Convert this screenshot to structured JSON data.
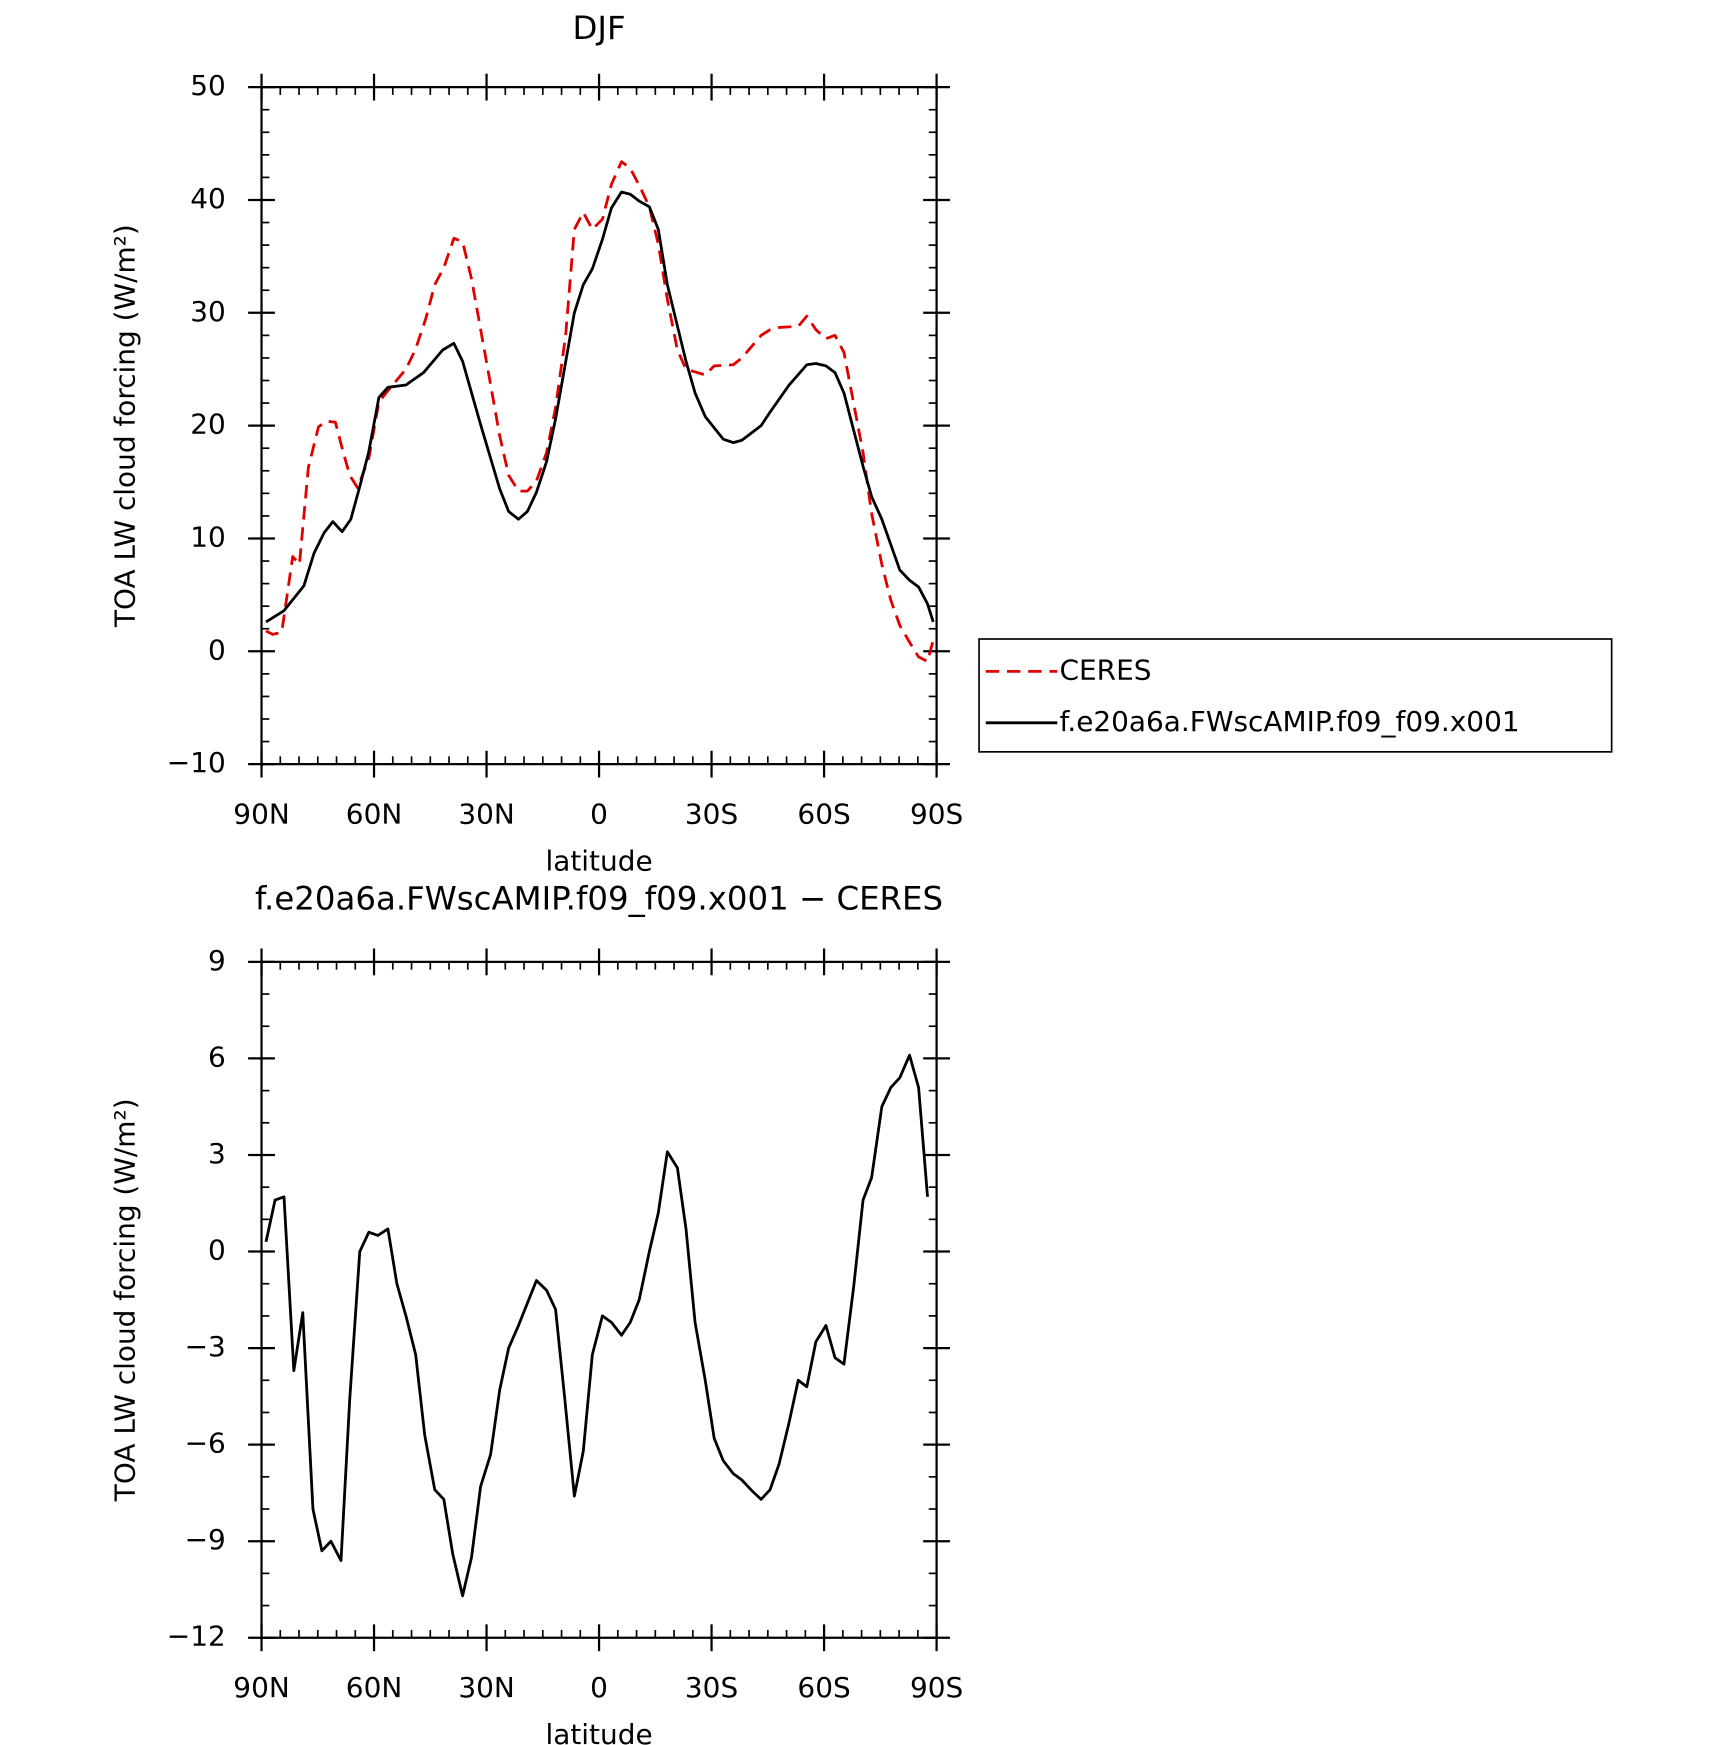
{
  "chart_data": [
    {
      "type": "line",
      "title": "DJF",
      "xlabel": "latitude",
      "ylabel": "TOA LW cloud forcing (W/m²)",
      "xlim": [
        90,
        -90
      ],
      "xticks": [
        {
          "value": 90,
          "label": "90N"
        },
        {
          "value": 60,
          "label": "60N"
        },
        {
          "value": 30,
          "label": "30N"
        },
        0,
        {
          "value": -30,
          "label": "30S"
        },
        {
          "value": -60,
          "label": "60S"
        },
        {
          "value": -90,
          "label": "90S"
        }
      ],
      "ylim": [
        -10,
        50
      ],
      "yticks": [
        {
          "value": -10,
          "label": "−10"
        },
        0,
        10,
        20,
        30,
        40,
        50
      ],
      "legend": "right",
      "series": [
        {
          "name": "CERES",
          "color": "#e00000",
          "dashed": true,
          "x": [
            88.8,
            87,
            84.6,
            81.7,
            79.9,
            77.5,
            74.8,
            72.7,
            70.3,
            68.2,
            66.5,
            64.4,
            61.4,
            58.7,
            56.3,
            51.5,
            48.9,
            46.2,
            43.8,
            41.4,
            38.7,
            36.4,
            34,
            31.3,
            28.9,
            26.5,
            24.1,
            21.5,
            19.1,
            16.7,
            14,
            11.6,
            8.9,
            6.6,
            4.2,
            1.8,
            -0.9,
            -3.3,
            -6,
            -8.3,
            -10.7,
            -13.4,
            -15.8,
            -18.2,
            -20.9,
            -23.2,
            -28.3,
            -30.7,
            -35.8,
            -38.1,
            -43.2,
            -45.6,
            -48,
            -53.1,
            -55.4,
            -57.8,
            -60.5,
            -62.9,
            -65.3,
            -70.4,
            -72.7,
            -75.4,
            -77.8,
            -80.2,
            -82.8,
            -85.2,
            -87.6,
            -89.1
          ],
          "values": [
            1.8,
            1.5,
            1.7,
            8.4,
            7.7,
            16.3,
            19.9,
            20.4,
            20.3,
            17.6,
            15.6,
            14.5,
            17.1,
            22.1,
            23.1,
            25,
            26.8,
            29.5,
            32.5,
            34,
            36.6,
            36.3,
            33,
            28,
            23.6,
            19.1,
            15.6,
            14.2,
            14.2,
            15.1,
            17.6,
            21.6,
            28,
            37.4,
            38.9,
            37.4,
            38.3,
            41.4,
            43.4,
            42.8,
            41.3,
            39.4,
            36.1,
            31.2,
            26.7,
            25,
            24.5,
            25.3,
            25.4,
            26,
            28,
            28.5,
            28.7,
            28.8,
            29.7,
            28.5,
            27.7,
            28,
            26.5,
            17.6,
            12.2,
            7.7,
            4.5,
            2.3,
            0.8,
            -0.5,
            -0.9,
            1
          ]
        },
        {
          "name": "f.e20a6a.FWscAMIP.f09_f09.x001",
          "color": "#000000",
          "dashed": false,
          "x": [
            88.8,
            84,
            78.7,
            76,
            73.3,
            71,
            68.5,
            66.2,
            63.8,
            61.4,
            58.7,
            56.3,
            51.5,
            46.8,
            41.7,
            38.7,
            36.4,
            31.6,
            26.5,
            24.1,
            21.5,
            19.1,
            16.7,
            14,
            11.6,
            6.6,
            4.2,
            1.8,
            -0.9,
            -3.3,
            -6,
            -8.3,
            -10.7,
            -13.4,
            -15.8,
            -18.2,
            -23.2,
            -25.6,
            -28.3,
            -33.1,
            -35.8,
            -38.1,
            -43.2,
            -45.6,
            -50.7,
            -55.4,
            -57.8,
            -60.5,
            -62.9,
            -65.3,
            -70.4,
            -72.7,
            -75.4,
            -80.2,
            -82.8,
            -85.2,
            -87.6,
            -89.1
          ],
          "values": [
            2.6,
            3.6,
            5.8,
            8.7,
            10.5,
            11.5,
            10.6,
            11.7,
            14.6,
            17.7,
            22.5,
            23.4,
            23.6,
            24.7,
            26.7,
            27.3,
            25.7,
            20.1,
            14.4,
            12.4,
            11.7,
            12.4,
            14.1,
            16.8,
            20.6,
            30,
            32.5,
            33.9,
            36.5,
            39.3,
            40.7,
            40.5,
            39.9,
            39.4,
            37.4,
            32.5,
            25.7,
            22.9,
            20.8,
            18.8,
            18.5,
            18.7,
            20,
            21.2,
            23.6,
            25.4,
            25.5,
            25.3,
            24.7,
            22.9,
            16.4,
            13.7,
            11.7,
            7.2,
            6.3,
            5.7,
            4.2,
            2.6
          ]
        }
      ]
    },
    {
      "type": "line",
      "title": "f.e20a6a.FWscAMIP.f09_f09.x001 − CERES",
      "xlabel": "latitude",
      "ylabel": "TOA LW cloud forcing (W/m²)",
      "xlim": [
        90,
        -90
      ],
      "xticks": [
        {
          "value": 90,
          "label": "90N"
        },
        {
          "value": 60,
          "label": "60N"
        },
        {
          "value": 30,
          "label": "30N"
        },
        0,
        {
          "value": -30,
          "label": "30S"
        },
        {
          "value": -60,
          "label": "60S"
        },
        {
          "value": -90,
          "label": "90S"
        }
      ],
      "ylim": [
        -12,
        9
      ],
      "yticks": [
        {
          "value": -12,
          "label": "−12"
        },
        {
          "value": -9,
          "label": "−9"
        },
        {
          "value": -6,
          "label": "−6"
        },
        {
          "value": -3,
          "label": "−3"
        },
        0,
        3,
        6,
        9
      ],
      "series": [
        {
          "color": "#000000",
          "dashed": false,
          "x": [
            88.8,
            86.4,
            84,
            81.4,
            79,
            76.3,
            73.9,
            71.5,
            68.8,
            66.5,
            63.8,
            61.4,
            59,
            56.3,
            53.9,
            51.5,
            48.9,
            46.5,
            43.8,
            41.4,
            39,
            36.4,
            34,
            31.6,
            28.9,
            26.5,
            24.1,
            21.5,
            19.1,
            16.7,
            14,
            11.6,
            9.2,
            6.6,
            4.2,
            1.8,
            -0.9,
            -3.3,
            -6,
            -8.3,
            -10.7,
            -13.4,
            -15.8,
            -18.2,
            -20.9,
            -23.2,
            -25.6,
            -28.3,
            -30.7,
            -33.1,
            -35.8,
            -38.1,
            -40.5,
            -43.2,
            -45.6,
            -48,
            -50.7,
            -53.1,
            -55.4,
            -57.8,
            -60.5,
            -62.9,
            -65.3,
            -67.9,
            -70.4,
            -72.7,
            -75.4,
            -77.8,
            -80.2,
            -82.8,
            -85.2,
            -87.6
          ],
          "values": [
            0.3,
            1.6,
            1.7,
            -3.7,
            -1.9,
            -8,
            -9.3,
            -9,
            -9.6,
            -4.6,
            0,
            0.6,
            0.5,
            0.7,
            -1,
            -2,
            -3.2,
            -5.7,
            -7.4,
            -7.7,
            -9.4,
            -10.7,
            -9.5,
            -7.3,
            -6.3,
            -4.3,
            -3,
            -2.3,
            -1.6,
            -0.9,
            -1.2,
            -1.8,
            -4.5,
            -7.6,
            -6.2,
            -3.2,
            -2,
            -2.2,
            -2.6,
            -2.2,
            -1.5,
            0,
            1.2,
            3.1,
            2.6,
            0.7,
            -2.2,
            -4,
            -5.8,
            -6.5,
            -6.9,
            -7.1,
            -7.4,
            -7.7,
            -7.4,
            -6.6,
            -5.3,
            -4,
            -4.2,
            -2.8,
            -2.3,
            -3.3,
            -3.5,
            -1.1,
            1.6,
            2.3,
            4.5,
            5.1,
            5.4,
            6.1,
            5.1,
            1.7
          ]
        }
      ]
    }
  ]
}
